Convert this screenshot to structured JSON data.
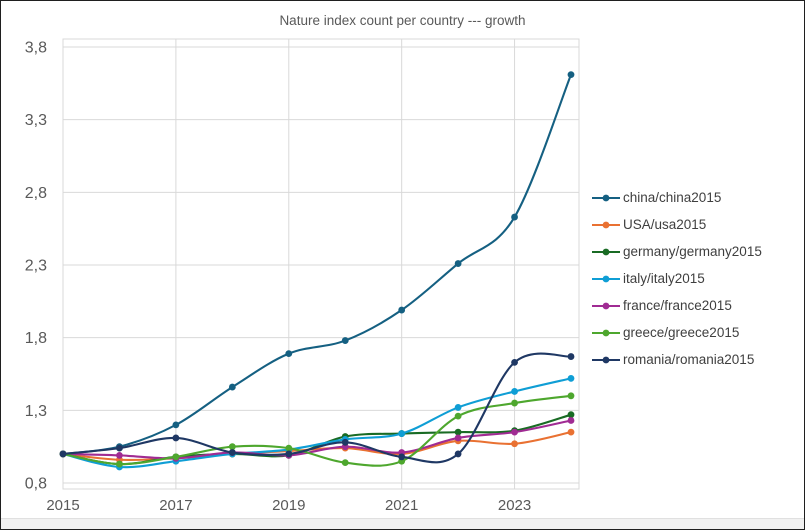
{
  "window": {
    "title": "Nature index count per country --- growth"
  },
  "chart_data": {
    "type": "line",
    "title": "Nature index count per country --- growth",
    "x": [
      2015,
      2016,
      2017,
      2018,
      2019,
      2020,
      2021,
      2022,
      2023,
      2024
    ],
    "x_tick_labels": [
      "2015",
      "2017",
      "2019",
      "2021",
      "2023"
    ],
    "x_tick_years": [
      2015,
      2017,
      2019,
      2021,
      2023
    ],
    "y_ticks": [
      0.8,
      1.3,
      1.8,
      2.3,
      2.8,
      3.3,
      3.8
    ],
    "y_tick_labels": [
      "0,8",
      "1,3",
      "1,8",
      "2,3",
      "2,8",
      "3,3",
      "3,8"
    ],
    "xlim": [
      2015,
      2024
    ],
    "ylim": [
      0.8,
      3.8
    ],
    "grid": true,
    "smooth_lines": true,
    "markers": "circle",
    "legend_position": "right",
    "series": [
      {
        "name": "china/china2015",
        "color": "#156082",
        "values": [
          1.0,
          1.05,
          1.2,
          1.46,
          1.69,
          1.78,
          1.99,
          2.31,
          2.63,
          3.61
        ]
      },
      {
        "name": "USA/usa2015",
        "color": "#E97132",
        "values": [
          1.0,
          0.96,
          0.97,
          1.0,
          1.02,
          1.04,
          1.0,
          1.09,
          1.07,
          1.15
        ]
      },
      {
        "name": "germany/germany2015",
        "color": "#196B24",
        "values": [
          1.0,
          0.93,
          0.98,
          1.0,
          0.99,
          1.12,
          1.14,
          1.15,
          1.16,
          1.27
        ]
      },
      {
        "name": "italy/italy2015",
        "color": "#0F9ED5",
        "values": [
          1.0,
          0.91,
          0.95,
          1.0,
          1.03,
          1.1,
          1.14,
          1.32,
          1.43,
          1.52
        ]
      },
      {
        "name": "france/france2015",
        "color": "#A02B93",
        "values": [
          1.0,
          0.99,
          0.97,
          1.01,
          0.99,
          1.05,
          1.01,
          1.11,
          1.15,
          1.23
        ]
      },
      {
        "name": "greece/greece2015",
        "color": "#4EA72E",
        "values": [
          1.0,
          0.93,
          0.98,
          1.05,
          1.04,
          0.94,
          0.95,
          1.26,
          1.35,
          1.4
        ]
      },
      {
        "name": "romania/romania2015",
        "color": "#1F3864",
        "values": [
          1.0,
          1.04,
          1.11,
          1.01,
          1.0,
          1.08,
          0.98,
          1.0,
          1.63,
          1.67
        ]
      }
    ]
  },
  "style": {
    "grid_color": "#d9d9d9",
    "plot_border_color": "#d9d9d9",
    "axis_text_color": "#595959",
    "title_text_color": "#595959",
    "legend_text_color": "#3f3f3f",
    "background": "#ffffff"
  }
}
